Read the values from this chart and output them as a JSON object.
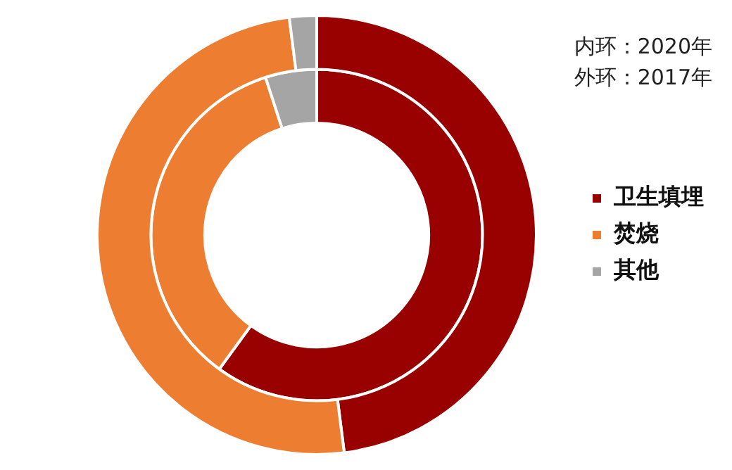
{
  "chart_data": {
    "type": "donut",
    "categories": [
      "卫生填埋",
      "焚烧",
      "其他"
    ],
    "colors": [
      "#990000",
      "#ed7d31",
      "#a5a5a5"
    ],
    "series": [
      {
        "values": [
          60,
          35,
          5
        ]
      },
      {
        "values": [
          48,
          50,
          2
        ]
      }
    ],
    "annotations": [
      "内环：2020年",
      "外环：2017年"
    ],
    "legend": "right"
  }
}
